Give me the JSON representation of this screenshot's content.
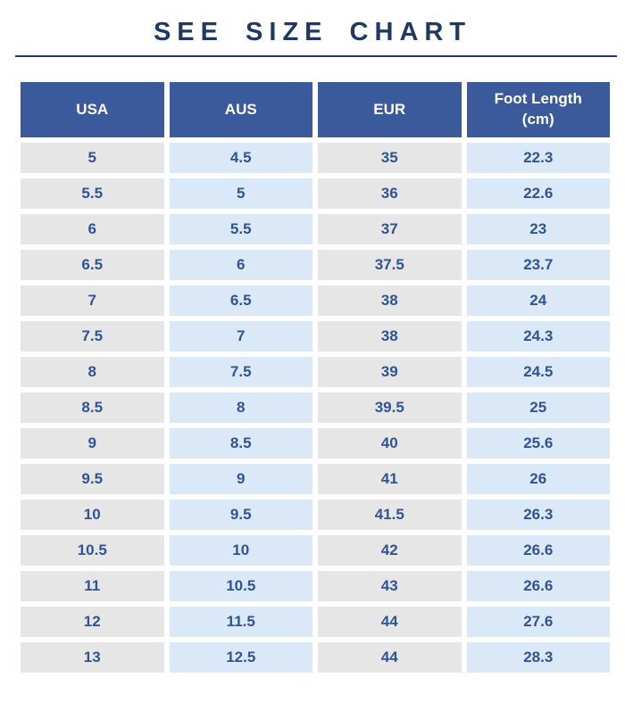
{
  "page": {
    "title": "SEE SIZE CHART"
  },
  "colors": {
    "background": "#ffffff",
    "title_text": "#1F3864",
    "divider": "#1F3864",
    "header_bg": "#3A5A9B",
    "header_text": "#ffffff",
    "col_gray": "#E7E6E6",
    "col_blue": "#DBE8F8",
    "cell_text": "#2F5496"
  },
  "table": {
    "headers": [
      "USA",
      "AUS",
      "EUR",
      "Foot Length (cm)"
    ],
    "rows": [
      [
        "5",
        "4.5",
        "35",
        "22.3"
      ],
      [
        "5.5",
        "5",
        "36",
        "22.6"
      ],
      [
        "6",
        "5.5",
        "37",
        "23"
      ],
      [
        "6.5",
        "6",
        "37.5",
        "23.7"
      ],
      [
        "7",
        "6.5",
        "38",
        "24"
      ],
      [
        "7.5",
        "7",
        "38",
        "24.3"
      ],
      [
        "8",
        "7.5",
        "39",
        "24.5"
      ],
      [
        "8.5",
        "8",
        "39.5",
        "25"
      ],
      [
        "9",
        "8.5",
        "40",
        "25.6"
      ],
      [
        "9.5",
        "9",
        "41",
        "26"
      ],
      [
        "10",
        "9.5",
        "41.5",
        "26.3"
      ],
      [
        "10.5",
        "10",
        "42",
        "26.6"
      ],
      [
        "11",
        "10.5",
        "43",
        "26.6"
      ],
      [
        "12",
        "11.5",
        "44",
        "27.6"
      ],
      [
        "13",
        "12.5",
        "44",
        "28.3"
      ]
    ]
  },
  "chart_data": {
    "type": "table",
    "title": "SEE SIZE CHART",
    "columns": [
      "USA",
      "AUS",
      "EUR",
      "Foot Length (cm)"
    ],
    "rows": [
      [
        "5",
        "4.5",
        "35",
        "22.3"
      ],
      [
        "5.5",
        "5",
        "36",
        "22.6"
      ],
      [
        "6",
        "5.5",
        "37",
        "23"
      ],
      [
        "6.5",
        "6",
        "37.5",
        "23.7"
      ],
      [
        "7",
        "6.5",
        "38",
        "24"
      ],
      [
        "7.5",
        "7",
        "38",
        "24.3"
      ],
      [
        "8",
        "7.5",
        "39",
        "24.5"
      ],
      [
        "8.5",
        "8",
        "39.5",
        "25"
      ],
      [
        "9",
        "8.5",
        "40",
        "25.6"
      ],
      [
        "9.5",
        "9",
        "41",
        "26"
      ],
      [
        "10",
        "9.5",
        "41.5",
        "26.3"
      ],
      [
        "10.5",
        "10",
        "42",
        "26.6"
      ],
      [
        "11",
        "10.5",
        "43",
        "26.6"
      ],
      [
        "12",
        "11.5",
        "44",
        "27.6"
      ],
      [
        "13",
        "12.5",
        "44",
        "28.3"
      ]
    ],
    "layout": {
      "header_fill": "#3A5A9B",
      "column_fills": [
        "#E7E6E6",
        "#DBE8F8",
        "#E7E6E6",
        "#DBE8F8"
      ],
      "grid": "off",
      "cell_text_align": "center"
    }
  }
}
